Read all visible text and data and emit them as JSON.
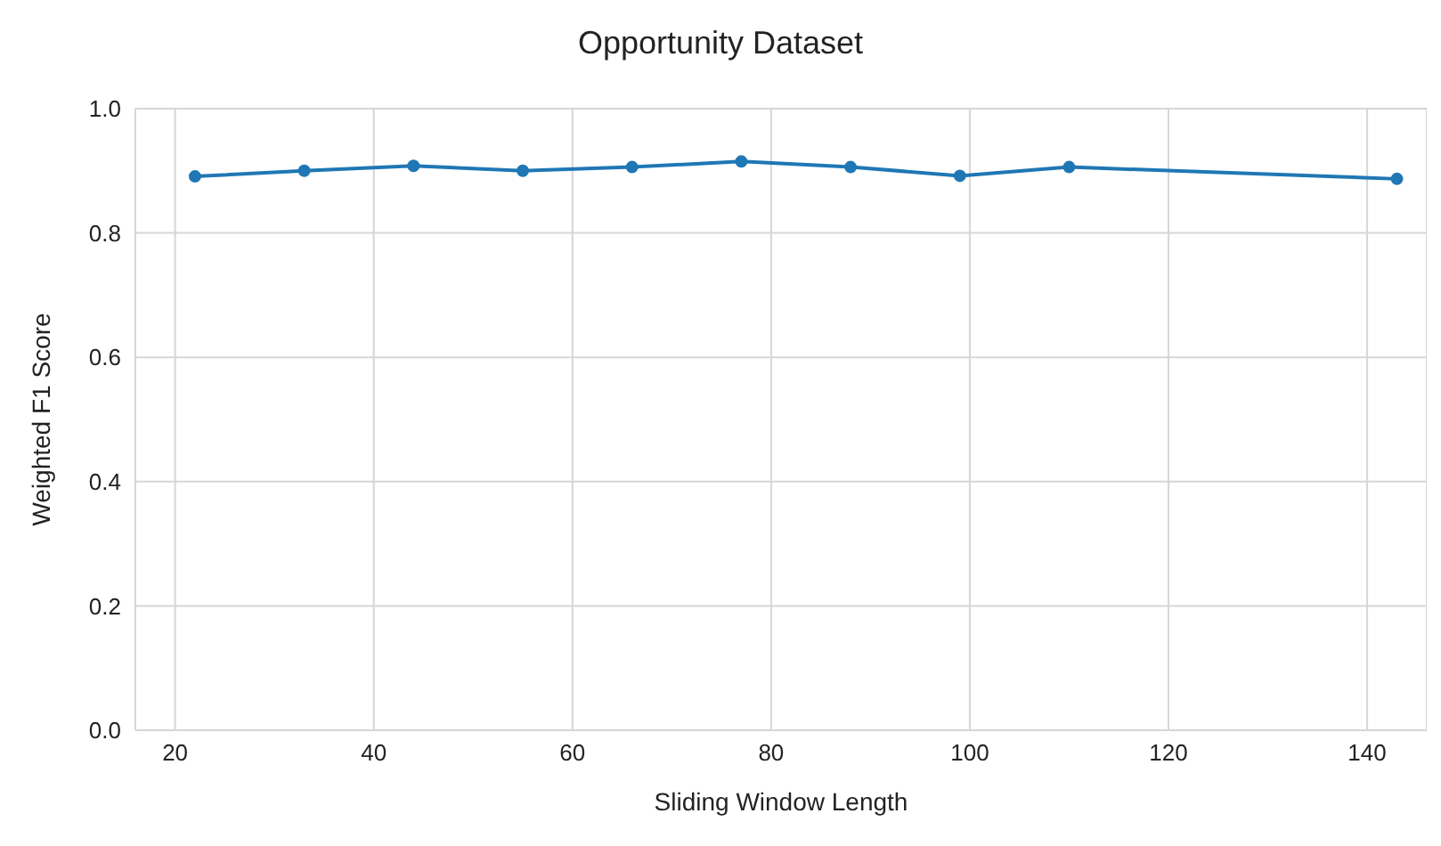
{
  "chart_data": {
    "type": "line",
    "title": "Opportunity Dataset",
    "xlabel": "Sliding Window Length",
    "ylabel": "Weighted F1 Score",
    "x": [
      22,
      33,
      44,
      55,
      66,
      77,
      88,
      99,
      110,
      143
    ],
    "series": [
      {
        "color": "#1f77b4",
        "values": [
          0.891,
          0.9,
          0.908,
          0.9,
          0.906,
          0.915,
          0.906,
          0.892,
          0.906,
          0.887
        ]
      }
    ],
    "xlim": [
      16,
      146
    ],
    "xticks": [
      20,
      40,
      60,
      80,
      100,
      120,
      140
    ],
    "ylim": [
      0,
      1
    ],
    "yticks": [
      {
        "value": 0,
        "label": "0.0"
      },
      {
        "value": 0.2,
        "label": "0.2"
      },
      {
        "value": 0.4,
        "label": "0.4"
      },
      {
        "value": 0.6,
        "label": "0.6"
      },
      {
        "value": 0.8,
        "label": "0.8"
      },
      {
        "value": 1,
        "label": "1.0"
      }
    ],
    "grid": true,
    "marker": "circle",
    "line_style": "solid"
  }
}
